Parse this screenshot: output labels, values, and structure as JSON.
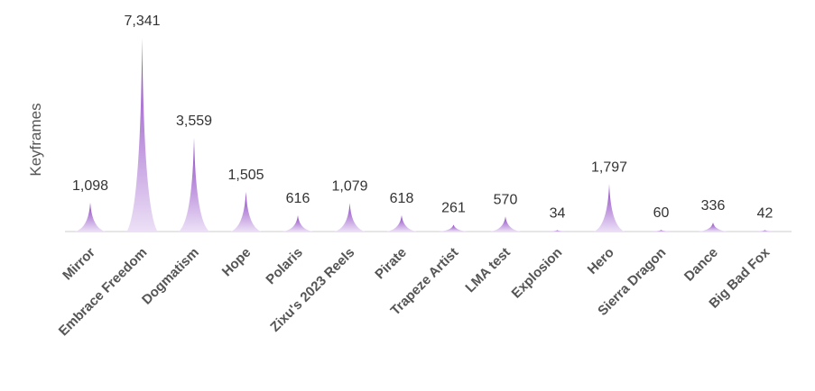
{
  "chart_data": {
    "type": "bar",
    "title": "",
    "xlabel": "",
    "ylabel": "Keyframes",
    "ylim": [
      0,
      7341
    ],
    "grid": false,
    "legend": "none",
    "categories": [
      "Mirror",
      "Embrace Freedom",
      "Dogmatism",
      "Hope",
      "Polaris",
      "Zixu's 2023 Reels",
      "Pirate",
      "Trapeze Artist",
      "LMA test",
      "Explosion",
      "Hero",
      "Sierra Dragon",
      "Dance",
      "Big Bad Fox"
    ],
    "values": [
      1098,
      7341,
      3559,
      1505,
      616,
      1079,
      618,
      261,
      570,
      34,
      1797,
      60,
      336,
      42
    ],
    "value_labels": [
      "1,098",
      "7,341",
      "3,559",
      "1,505",
      "616",
      "1,079",
      "618",
      "261",
      "570",
      "34",
      "1,797",
      "60",
      "336",
      "42"
    ],
    "colors": {
      "spike_top": "#8a3fc1",
      "spike_bottom": "#ece0f6",
      "baseline": "#cccccc",
      "label": "#333333",
      "category": "#555555"
    }
  }
}
